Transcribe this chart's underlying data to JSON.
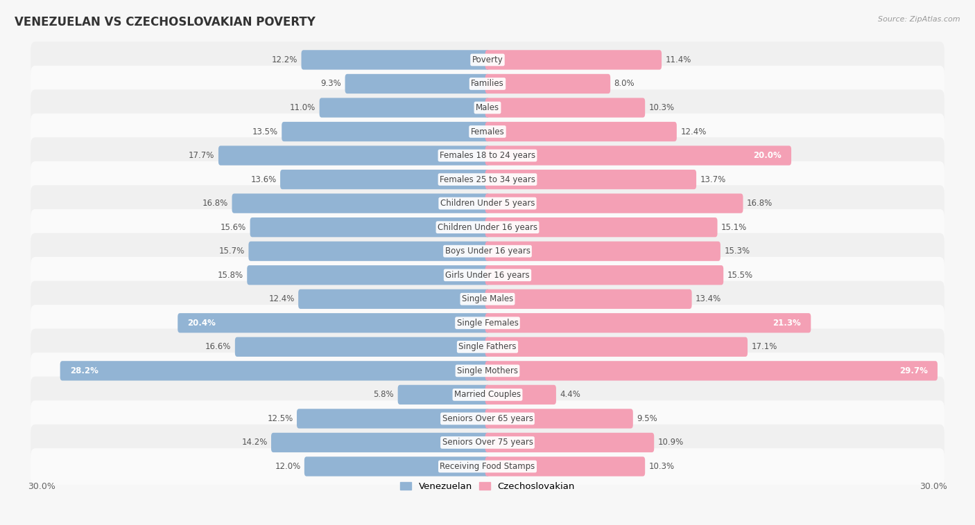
{
  "title": "VENEZUELAN VS CZECHOSLOVAKIAN POVERTY",
  "source": "Source: ZipAtlas.com",
  "categories": [
    "Poverty",
    "Families",
    "Males",
    "Females",
    "Females 18 to 24 years",
    "Females 25 to 34 years",
    "Children Under 5 years",
    "Children Under 16 years",
    "Boys Under 16 years",
    "Girls Under 16 years",
    "Single Males",
    "Single Females",
    "Single Fathers",
    "Single Mothers",
    "Married Couples",
    "Seniors Over 65 years",
    "Seniors Over 75 years",
    "Receiving Food Stamps"
  ],
  "venezuelan": [
    12.2,
    9.3,
    11.0,
    13.5,
    17.7,
    13.6,
    16.8,
    15.6,
    15.7,
    15.8,
    12.4,
    20.4,
    16.6,
    28.2,
    5.8,
    12.5,
    14.2,
    12.0
  ],
  "czechoslovakian": [
    11.4,
    8.0,
    10.3,
    12.4,
    20.0,
    13.7,
    16.8,
    15.1,
    15.3,
    15.5,
    13.4,
    21.3,
    17.1,
    29.7,
    4.4,
    9.5,
    10.9,
    10.3
  ],
  "venezuelan_color": "#92b4d4",
  "czechoslovakian_color": "#f4a0b5",
  "highlight_venezuelan": [
    11,
    13
  ],
  "highlight_czechoslovakian": [
    4,
    11,
    13
  ],
  "background_color": "#f7f7f7",
  "row_even_color": "#f0f0f0",
  "row_odd_color": "#fafafa",
  "axis_max": 30.0,
  "bar_height": 0.52,
  "label_fontsize": 8.5,
  "title_fontsize": 12,
  "legend_fontsize": 9.5
}
